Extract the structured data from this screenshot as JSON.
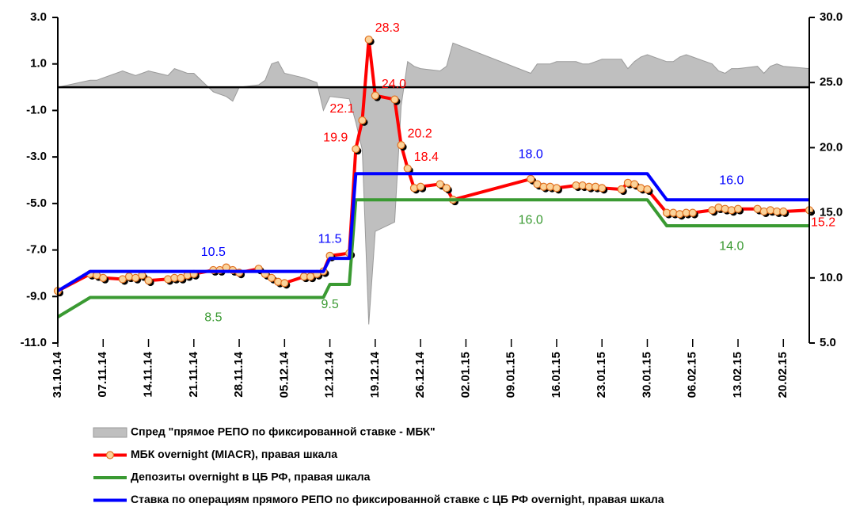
{
  "chart_data": {
    "type": "line",
    "legend": "bottom",
    "x": [
      "31.10.14",
      "05.11.14",
      "06.11.14",
      "07.11.14",
      "10.11.14",
      "11.11.14",
      "12.11.14",
      "13.11.14",
      "14.11.14",
      "17.11.14",
      "18.11.14",
      "19.11.14",
      "20.11.14",
      "21.11.14",
      "24.11.14",
      "25.11.14",
      "26.11.14",
      "27.11.14",
      "28.11.14",
      "01.12.14",
      "02.12.14",
      "03.12.14",
      "04.12.14",
      "05.12.14",
      "08.12.14",
      "09.12.14",
      "10.12.14",
      "11.12.14",
      "12.12.14",
      "15.12.14",
      "16.12.14",
      "17.12.14",
      "18.12.14",
      "19.12.14",
      "22.12.14",
      "23.12.14",
      "24.12.14",
      "25.12.14",
      "26.12.14",
      "29.12.14",
      "30.12.14",
      "31.12.14",
      "12.01.15",
      "13.01.15",
      "14.01.15",
      "15.01.15",
      "16.01.15",
      "19.01.15",
      "20.01.15",
      "21.01.15",
      "22.01.15",
      "23.01.15",
      "26.01.15",
      "27.01.15",
      "28.01.15",
      "29.01.15",
      "30.01.15",
      "02.02.15",
      "03.02.15",
      "04.02.15",
      "05.02.15",
      "06.02.15",
      "09.02.15",
      "10.02.15",
      "11.02.15",
      "12.02.15",
      "13.02.15",
      "16.02.15",
      "17.02.15",
      "18.02.15",
      "19.02.15",
      "20.02.15",
      "24.02.15"
    ],
    "xticks": [
      "31.10.14",
      "07.11.14",
      "14.11.14",
      "21.11.14",
      "28.11.14",
      "05.12.14",
      "12.12.14",
      "19.12.14",
      "26.12.14",
      "02.01.15",
      "09.01.15",
      "16.01.15",
      "23.01.15",
      "30.01.15",
      "06.02.15",
      "13.02.15",
      "20.02.15"
    ],
    "ylim": [
      -11,
      3
    ],
    "yticks": [
      {
        "value": 3,
        "label": "3.0"
      },
      {
        "value": 1,
        "label": "1.0"
      },
      {
        "value": -1,
        "label": "-1.0"
      },
      {
        "value": -3,
        "label": "-3.0"
      },
      {
        "value": -5,
        "label": "-5.0"
      },
      {
        "value": -7,
        "label": "-7.0"
      },
      {
        "value": -9,
        "label": "-9.0"
      },
      {
        "value": -11,
        "label": "-11.0"
      }
    ],
    "y2lim": [
      5,
      30
    ],
    "y2ticks": [
      {
        "value": 30,
        "label": "30.0"
      },
      {
        "value": 25,
        "label": "25.0"
      },
      {
        "value": 20,
        "label": "20.0"
      },
      {
        "value": 15,
        "label": "15.0"
      },
      {
        "value": 10,
        "label": "10.0"
      },
      {
        "value": 5,
        "label": "5.0"
      }
    ],
    "series": [
      {
        "name": "Спред \"прямое РЕПО по фиксированной ставке - МБК\"",
        "type": "area",
        "color": "#bfbfbf",
        "values": [
          0.0,
          0.3,
          0.3,
          0.4,
          0.7,
          0.6,
          0.5,
          0.6,
          0.7,
          0.5,
          0.8,
          0.7,
          0.6,
          0.6,
          -0.2,
          -0.3,
          -0.4,
          -0.6,
          0.0,
          0.1,
          0.3,
          1.0,
          1.1,
          0.6,
          0.4,
          0.3,
          0.2,
          -1.0,
          -0.4,
          -0.5,
          -1.5,
          -2.7,
          -10.2,
          -6.2,
          -5.8,
          -0.8,
          1.1,
          0.9,
          0.8,
          0.7,
          0.9,
          1.9,
          0.6,
          1.0,
          1.0,
          1.0,
          1.1,
          1.1,
          1.0,
          1.0,
          1.1,
          1.2,
          1.2,
          0.8,
          1.1,
          1.3,
          1.4,
          1.1,
          1.1,
          1.3,
          1.4,
          1.3,
          1.0,
          0.7,
          0.6,
          0.8,
          0.8,
          0.9,
          0.6,
          0.9,
          1.0,
          0.9,
          0.8
        ]
      },
      {
        "name": "МБК overnight (MIACR), правая шкала",
        "type": "line",
        "markers": true,
        "axis": "y2",
        "color": "#ff0000",
        "values": [
          9.0,
          10.3,
          10.2,
          10.0,
          9.9,
          10.1,
          10.0,
          10.2,
          9.8,
          9.9,
          10.0,
          10.0,
          10.2,
          10.3,
          10.6,
          10.6,
          10.8,
          10.6,
          10.4,
          10.7,
          10.3,
          10.0,
          9.7,
          9.6,
          10.1,
          10.1,
          10.3,
          10.5,
          11.7,
          11.9,
          19.9,
          22.1,
          28.3,
          24.0,
          23.7,
          20.2,
          18.4,
          16.9,
          17.0,
          17.2,
          16.9,
          16.0,
          17.6,
          17.2,
          17.0,
          17.0,
          16.9,
          17.1,
          17.1,
          17.0,
          17.0,
          16.9,
          16.8,
          17.3,
          17.2,
          16.9,
          16.8,
          15.0,
          15.0,
          14.9,
          15.0,
          15.0,
          15.2,
          15.4,
          15.3,
          15.2,
          15.3,
          15.3,
          15.1,
          15.2,
          15.1,
          15.1,
          15.2
        ],
        "value_labels": [
          null,
          null,
          null,
          null,
          null,
          null,
          null,
          null,
          null,
          null,
          null,
          null,
          null,
          null,
          null,
          null,
          null,
          null,
          null,
          null,
          null,
          null,
          null,
          null,
          null,
          null,
          null,
          null,
          null,
          null,
          "19.9",
          "22.1",
          "28.3",
          "24.0",
          null,
          "20.2",
          "18.4",
          null,
          null,
          null,
          null,
          null,
          null,
          null,
          null,
          null,
          null,
          null,
          null,
          null,
          null,
          null,
          null,
          null,
          null,
          null,
          null,
          null,
          null,
          null,
          null,
          null,
          null,
          null,
          null,
          null,
          null,
          null,
          null,
          null,
          null,
          null,
          "15.2"
        ]
      },
      {
        "name": "Депозиты overnight в ЦБ РФ, правая шкала",
        "type": "line",
        "axis": "y2",
        "color": "#3a9a32",
        "values": [
          7.0,
          8.5,
          8.5,
          8.5,
          8.5,
          8.5,
          8.5,
          8.5,
          8.5,
          8.5,
          8.5,
          8.5,
          8.5,
          8.5,
          8.5,
          8.5,
          8.5,
          8.5,
          8.5,
          8.5,
          8.5,
          8.5,
          8.5,
          8.5,
          8.5,
          8.5,
          8.5,
          8.5,
          9.5,
          9.5,
          16.0,
          16.0,
          16.0,
          16.0,
          16.0,
          16.0,
          16.0,
          16.0,
          16.0,
          16.0,
          16.0,
          16.0,
          16.0,
          16.0,
          16.0,
          16.0,
          16.0,
          16.0,
          16.0,
          16.0,
          16.0,
          16.0,
          16.0,
          16.0,
          16.0,
          16.0,
          16.0,
          14.0,
          14.0,
          14.0,
          14.0,
          14.0,
          14.0,
          14.0,
          14.0,
          14.0,
          14.0,
          14.0,
          14.0,
          14.0,
          14.0,
          14.0,
          14.0
        ],
        "value_labels": [
          null,
          null,
          null,
          null,
          null,
          null,
          null,
          null,
          null,
          null,
          null,
          null,
          null,
          null,
          "8.5",
          null,
          null,
          null,
          null,
          null,
          null,
          null,
          null,
          null,
          null,
          null,
          null,
          null,
          "9.5",
          null,
          null,
          null,
          null,
          null,
          null,
          null,
          null,
          null,
          null,
          null,
          null,
          null,
          "16.0",
          null,
          null,
          null,
          null,
          null,
          null,
          null,
          null,
          null,
          null,
          null,
          null,
          null,
          null,
          null,
          null,
          null,
          null,
          null,
          null,
          null,
          null,
          "14.0",
          null,
          null,
          null,
          null,
          null,
          null,
          null
        ]
      },
      {
        "name": "Ставка по операциям прямого РЕПО по фиксированной ставке с ЦБ РФ overnight, правая шкала",
        "type": "line",
        "axis": "y2",
        "color": "#0000ff",
        "values": [
          9.0,
          10.5,
          10.5,
          10.5,
          10.5,
          10.5,
          10.5,
          10.5,
          10.5,
          10.5,
          10.5,
          10.5,
          10.5,
          10.5,
          10.5,
          10.5,
          10.5,
          10.5,
          10.5,
          10.5,
          10.5,
          10.5,
          10.5,
          10.5,
          10.5,
          10.5,
          10.5,
          10.5,
          11.5,
          11.5,
          18.0,
          18.0,
          18.0,
          18.0,
          18.0,
          18.0,
          18.0,
          18.0,
          18.0,
          18.0,
          18.0,
          18.0,
          18.0,
          18.0,
          18.0,
          18.0,
          18.0,
          18.0,
          18.0,
          18.0,
          18.0,
          18.0,
          18.0,
          18.0,
          18.0,
          18.0,
          18.0,
          16.0,
          16.0,
          16.0,
          16.0,
          16.0,
          16.0,
          16.0,
          16.0,
          16.0,
          16.0,
          16.0,
          16.0,
          16.0,
          16.0,
          16.0,
          16.0
        ],
        "value_labels": [
          null,
          null,
          null,
          null,
          null,
          null,
          null,
          null,
          null,
          null,
          null,
          null,
          null,
          null,
          "10.5",
          null,
          null,
          null,
          null,
          null,
          null,
          null,
          null,
          null,
          null,
          null,
          null,
          null,
          "11.5",
          null,
          null,
          null,
          null,
          null,
          null,
          null,
          null,
          null,
          null,
          null,
          null,
          null,
          "18.0",
          null,
          null,
          null,
          null,
          null,
          null,
          null,
          null,
          null,
          null,
          null,
          null,
          null,
          null,
          null,
          null,
          null,
          null,
          null,
          null,
          null,
          null,
          "16.0",
          null,
          null,
          null,
          null,
          null,
          null,
          null
        ]
      }
    ]
  }
}
